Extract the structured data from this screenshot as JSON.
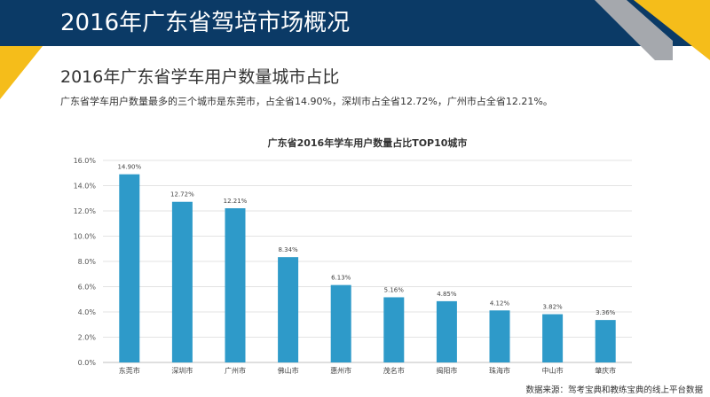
{
  "header": {
    "title": "2016年广东省驾培市场概况"
  },
  "section": {
    "subtitle": "2016年广东省学车用户数量城市占比",
    "description": "广东省学车用户数量最多的三个城市是东莞市，占全省14.90%，深圳市占全省12.72%，广州市占全省12.21%。"
  },
  "footer": {
    "source": "数据来源：驾考宝典和教练宝典的线上平台数据"
  },
  "colors": {
    "header_bg": "#0b3a66",
    "accent_yellow": "#f5bd1a",
    "accent_gray": "#a5a8ad",
    "bar": "#2e9ac9"
  },
  "chart_data": {
    "type": "bar",
    "title": "广东省2016年学车用户数量占比TOP10城市",
    "categories": [
      "东莞市",
      "深圳市",
      "广州市",
      "佛山市",
      "惠州市",
      "茂名市",
      "揭阳市",
      "珠海市",
      "中山市",
      "肇庆市"
    ],
    "values": [
      14.9,
      12.72,
      12.21,
      8.34,
      6.13,
      5.16,
      4.85,
      4.12,
      3.82,
      3.36
    ],
    "value_labels": [
      "14.90%",
      "12.72%",
      "12.21%",
      "8.34%",
      "6.13%",
      "5.16%",
      "4.85%",
      "4.12%",
      "3.82%",
      "3.36%"
    ],
    "yticks": [
      "0.0%",
      "2.0%",
      "4.0%",
      "6.0%",
      "8.0%",
      "10.0%",
      "12.0%",
      "14.0%",
      "16.0%"
    ],
    "ylim": [
      0,
      16
    ],
    "grid": true,
    "xlabel": "",
    "ylabel": ""
  }
}
